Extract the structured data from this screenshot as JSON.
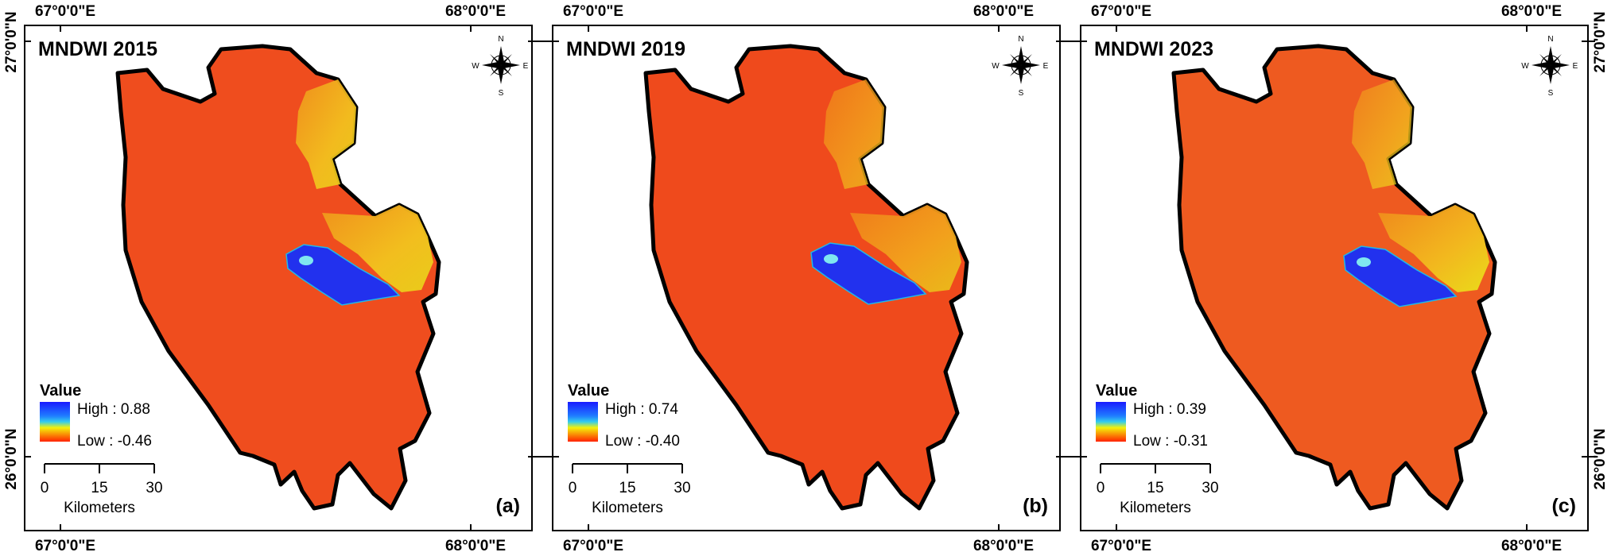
{
  "panels": [
    {
      "title": "MNDWI 2015",
      "panel_label": "(a)",
      "legend": {
        "title": "Value",
        "high": "High : 0.88",
        "low": "Low : -0.46"
      }
    },
    {
      "title": "MNDWI 2019",
      "panel_label": "(b)",
      "legend": {
        "title": "Value",
        "high": "High : 0.74",
        "low": "Low : -0.40"
      }
    },
    {
      "title": "MNDWI 2023",
      "panel_label": "(c)",
      "legend": {
        "title": "Value",
        "high": "High : 0.39",
        "low": "Low : -0.31"
      }
    }
  ],
  "graticule": {
    "lon_left": "67°0'0\"E",
    "lon_right": "68°0'0\"E",
    "lat_top": "27°0'0\"N",
    "lat_bottom": "26°0'0\"N"
  },
  "scale_bar": {
    "ticks": [
      "0",
      "15",
      "30"
    ],
    "unit": "Kilometers"
  },
  "north_arrow": {
    "n": "N",
    "s": "S",
    "e": "E",
    "w": "W"
  },
  "colors": {
    "ramp_high": "#1a1aff",
    "ramp_mid_cyan": "#33ccee",
    "ramp_mid_yellow": "#f4f20a",
    "ramp_low": "#ff2200",
    "land": "#ef4d1e",
    "lake": "#2231ee",
    "wetland": "#f2b21a"
  }
}
